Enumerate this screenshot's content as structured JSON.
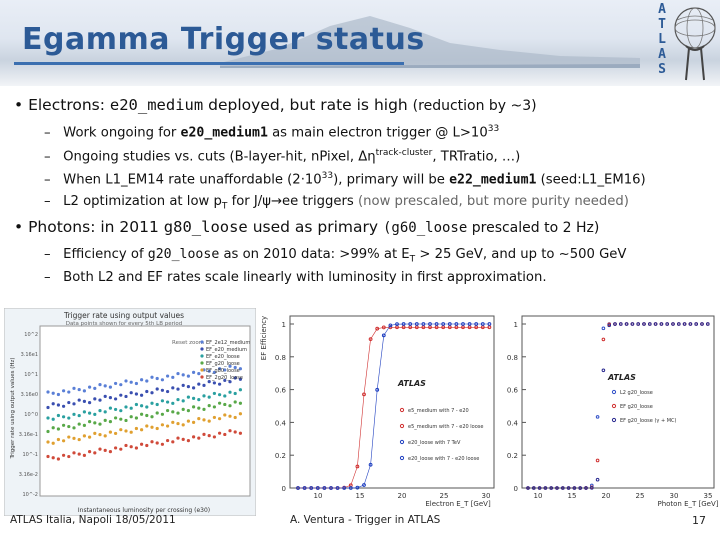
{
  "title": "Egamma Trigger status",
  "logo_letters": [
    "A",
    "T",
    "L",
    "A",
    "S"
  ],
  "bullets": [
    {
      "pre": "Electrons: ",
      "code": "e20_medium",
      "post": " deployed, but rate is high ",
      "note": "(reduction by ~3)"
    },
    {
      "pre": "Photons: in 2011 ",
      "code": "g80_loose",
      "post": " used as primary ",
      "note_code": "(g60_loose",
      "note": " prescaled to 2 Hz)"
    }
  ],
  "sub_e": [
    {
      "pre": "Work ongoing for ",
      "code": "e20_medium1",
      "post": " as main electron trigger @ L>10",
      "sup": "33"
    },
    {
      "pre": "Ongoing studies vs. cuts (B-layer-hit, nPixel, Δη",
      "sup": "track-cluster",
      "post": ", TRTratio, …)"
    },
    {
      "pre": "When L1_EM14 rate unaffordable (2·10",
      "sup": "33",
      "mid": "), primary will be ",
      "code": "e22_medium1",
      "post": " (seed:L1_EM16)"
    },
    {
      "pre": "L2 optimization at low p",
      "sub": "T",
      "mid": " for J/ψ→ee triggers ",
      "grey": "(now prescaled, but more purity needed)"
    }
  ],
  "sub_p": [
    {
      "pre": "Efficiency of ",
      "code": "g20_loose",
      "mid": " as on 2010 data: >99% at E",
      "sub": "T",
      "post": " > 25 GeV, and up to ~500 GeV"
    },
    {
      "pre": "Both L2 and EF rates scale linearly with luminosity in first approximation."
    }
  ],
  "footer": {
    "left": "ATLAS Italia, Napoli 18/05/2011",
    "center": "A. Ventura - Trigger in ATLAS",
    "page": "17"
  },
  "colors": {
    "title": "#2c5a96",
    "accent": "#3b6fb0"
  },
  "plot1": {
    "title": "Trigger rate using output values",
    "subtitle": "Data points shown for every 5th LB period",
    "ylabel": "Trigger rate using output values (Hz)",
    "xlabel": "Instantaneous luminosity per crossing (e30)",
    "legend": [
      "EF_2e12_medium",
      "EF_e20_medium",
      "EF_e20_loose",
      "EF_g20_loose",
      "EF_g80_loose",
      "EF_2g20_loose"
    ],
    "legend_colors": [
      "#5a7fd6",
      "#3a4fb0",
      "#2aa0a0",
      "#58a848",
      "#e0a030",
      "#d04a3a"
    ],
    "yticks": [
      "10^2",
      "3.16e1",
      "10^1",
      "3.16e0",
      "10^0",
      "3.16e-1",
      "10^-1",
      "3.16e-2",
      "10^-2"
    ],
    "note": "Reset zoom"
  },
  "plot2": {
    "ylabel": "EF Efficiency",
    "xlabel": "Electron E_T [GeV]",
    "atlas": "ATLAS",
    "yticks": [
      "1",
      "0.8",
      "0.6",
      "0.4",
      "0.2",
      "0"
    ],
    "xticks": [
      "10",
      "15",
      "20",
      "25",
      "30"
    ],
    "legend": [
      "e5_medium with 7 - e20",
      "e5_medium with 7 - e20 loose",
      "e20_loose with 7 TeV",
      "e20_loose with 7 - e20 loose"
    ]
  },
  "plot3": {
    "xlabel": "Photon E_T [GeV]",
    "atlas": "ATLAS",
    "yticks": [
      "1",
      "0.8",
      "0.6",
      "0.4",
      "0.2",
      "0"
    ],
    "xticks": [
      "10",
      "15",
      "20",
      "25",
      "30",
      "35"
    ],
    "legend": [
      "L2 g20_loose",
      "EF g20_loose",
      "EF g20_loose (γ + MC)"
    ]
  }
}
